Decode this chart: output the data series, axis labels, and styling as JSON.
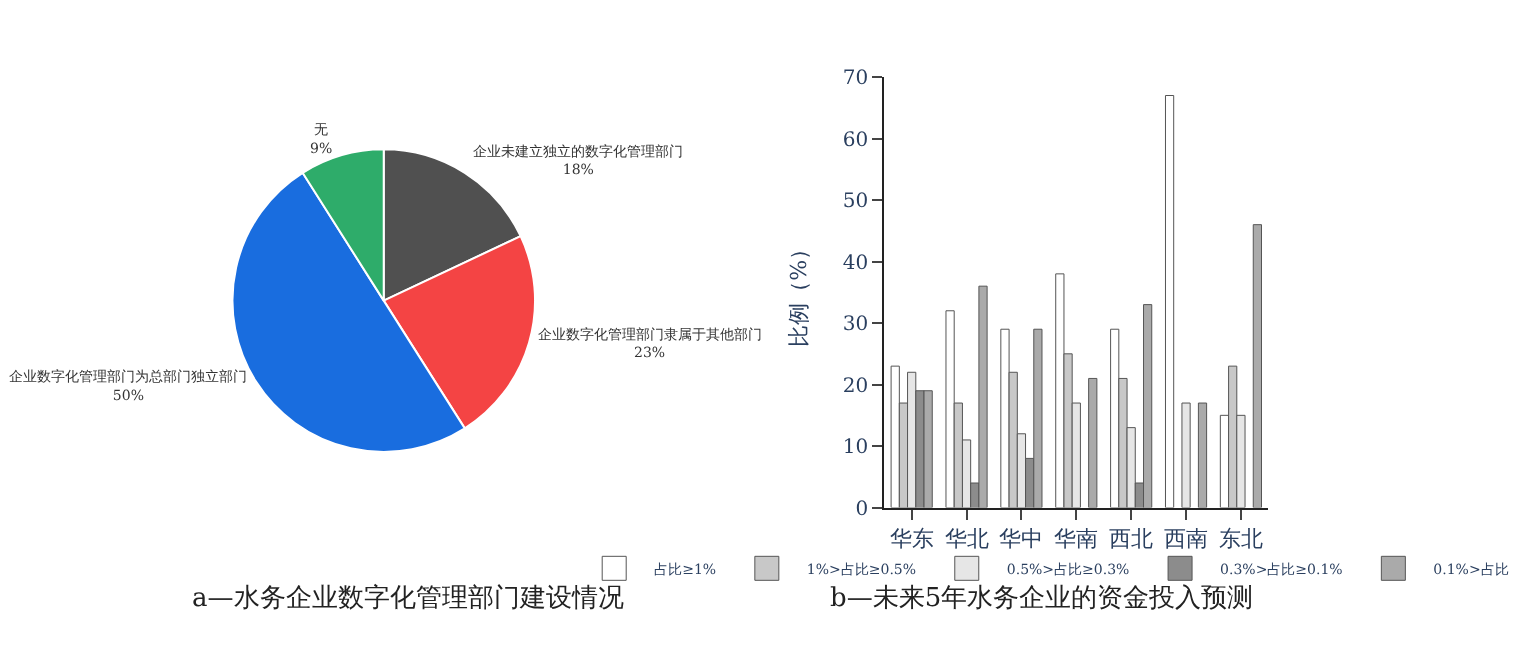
{
  "chart_data": [
    {
      "type": "pie",
      "title": "a—水务企业数字化管理部门建设情况",
      "categories": [
        "企业未建立独立的数字化管理部门",
        "企业数字化管理部门隶属于其他部门",
        "企业数字化管理部门为总部门独立部门",
        "无"
      ],
      "values": [
        18,
        23,
        50,
        9
      ],
      "value_labels": [
        "18%",
        "23%",
        "50%",
        "9%"
      ],
      "colors": [
        "#505050",
        "#f44444",
        "#196ddf",
        "#2eac6a"
      ],
      "legend": false
    },
    {
      "type": "bar",
      "title": "b—未来5年水务企业的资金投入预测",
      "ylabel": "比例（%）",
      "categories": [
        "华东",
        "华北",
        "华中",
        "华南",
        "西北",
        "西南",
        "东北"
      ],
      "series": [
        {
          "name": "占比≥1%",
          "color": "#ffffff",
          "values": [
            23,
            32,
            29,
            38,
            29,
            67,
            15
          ]
        },
        {
          "name": "1%>占比≥0.5%",
          "color": "#c8c8c8",
          "values": [
            17,
            17,
            22,
            25,
            21,
            null,
            23
          ]
        },
        {
          "name": "0.5%>占比≥0.3%",
          "color": "#e6e6e6",
          "values": [
            22,
            11,
            12,
            17,
            13,
            17,
            15
          ]
        },
        {
          "name": "0.3%>占比≥0.1%",
          "color": "#8c8c8c",
          "values": [
            19,
            4,
            8,
            null,
            4,
            null,
            null
          ]
        },
        {
          "name": "0.1%>占比",
          "color": "#aaaaaa",
          "values": [
            19,
            36,
            29,
            21,
            33,
            17,
            46
          ]
        }
      ],
      "ylim": [
        0,
        70
      ],
      "yticks": [
        0,
        10,
        20,
        30,
        40,
        50,
        60,
        70
      ],
      "legend": "bottom"
    }
  ]
}
